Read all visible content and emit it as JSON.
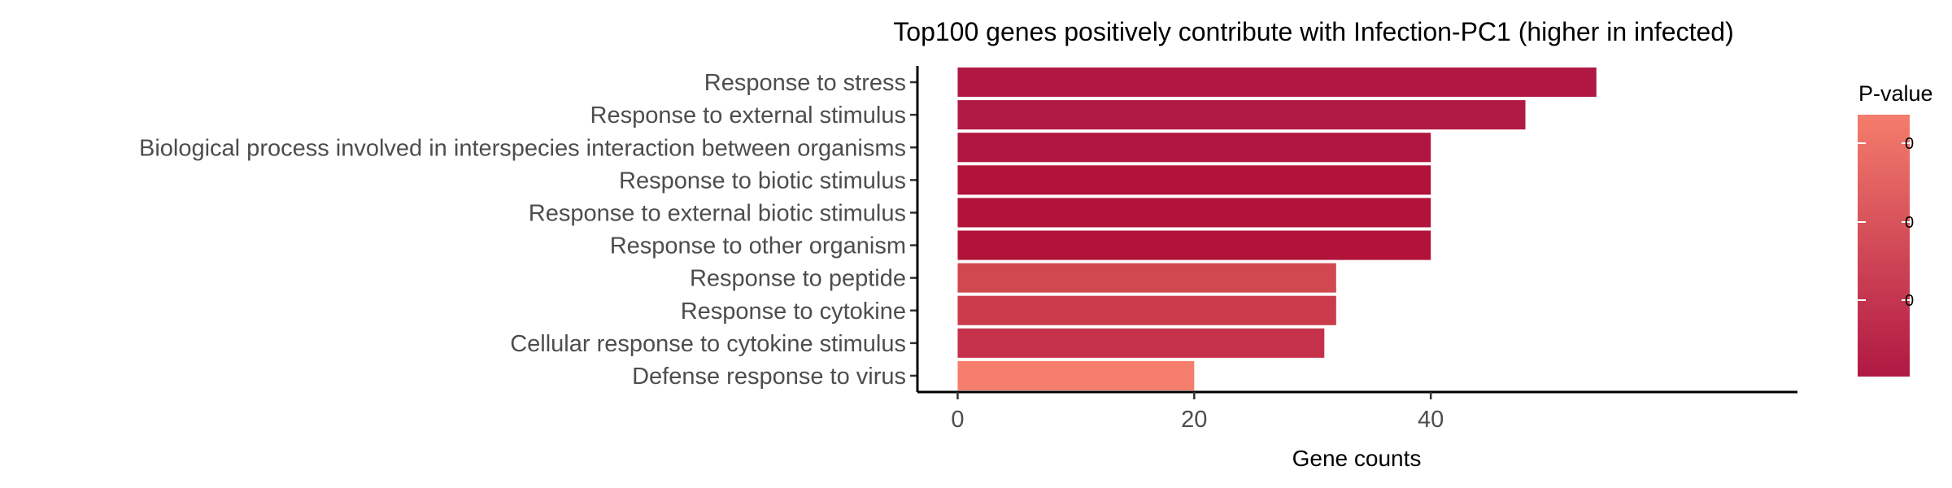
{
  "chart_data": {
    "type": "bar",
    "orientation": "horizontal",
    "title": "Top100 genes positively contribute with Infection-PC1 (higher in infected)",
    "xlabel": "Gene counts",
    "ylabel": "",
    "xlim": [
      -3.4,
      71
    ],
    "x_ticks": [
      0,
      20,
      40
    ],
    "categories": [
      "Response to stress",
      "Response to external stimulus",
      "Biological process involved in interspecies interaction between organisms",
      "Response to biotic stimulus",
      "Response to external biotic stimulus",
      "Response to other organism",
      "Response to peptide",
      "Response to cytokine",
      "Cellular response to cytokine stimulus",
      "Defense response to virus"
    ],
    "values": [
      54,
      48,
      40,
      40,
      40,
      40,
      32,
      32,
      31,
      20
    ],
    "bar_colors": [
      "#B01843",
      "#B11A44",
      "#B11640",
      "#B21339",
      "#B21339",
      "#B21339",
      "#D14851",
      "#CA3C4C",
      "#C5314A",
      "#F47D6C"
    ],
    "grid": false,
    "legend": {
      "title": "P-value",
      "position": "right",
      "tick_labels": [
        "0",
        "0",
        "0"
      ],
      "gradient_top": "#F47D6C",
      "gradient_bottom": "#B01843"
    }
  }
}
